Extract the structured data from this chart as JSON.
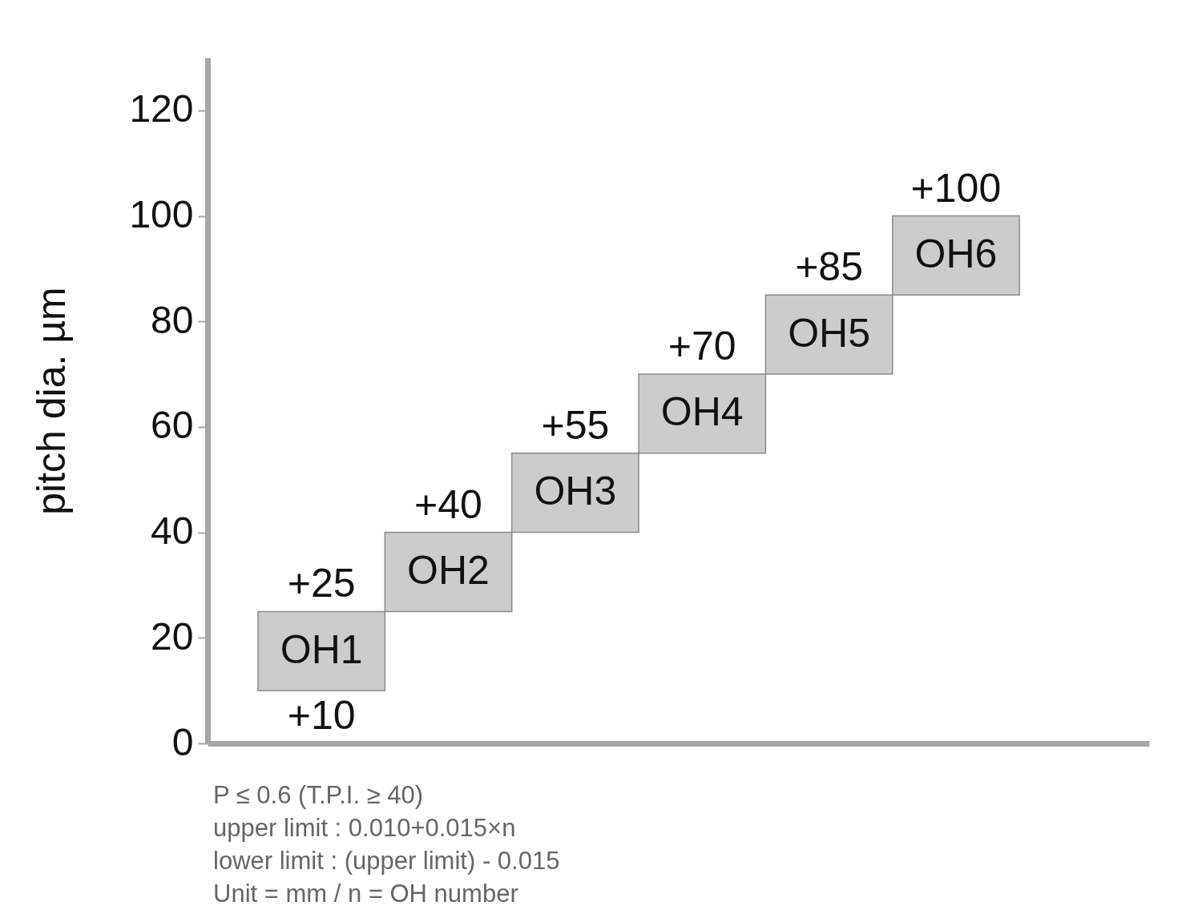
{
  "chart_data": {
    "type": "bar",
    "ylabel": "pitch dia. µm",
    "categories": [
      "OH1",
      "OH2",
      "OH3",
      "OH4",
      "OH5",
      "OH6"
    ],
    "values": [
      15,
      15,
      15,
      15,
      15,
      15
    ],
    "base": [
      10,
      25,
      40,
      55,
      70,
      85
    ],
    "color": "#cccccc",
    "ylim": [
      0,
      130
    ],
    "yticks": [
      0,
      20,
      40,
      60,
      80,
      100,
      120
    ],
    "grid": false,
    "tick_labels": "y",
    "annotations": [
      {
        "text": "+10",
        "x": "OH1",
        "y": 10
      },
      {
        "text": "+25",
        "x": "OH1",
        "y": 25
      },
      {
        "text": "+40",
        "x": "OH2",
        "y": 40
      },
      {
        "text": "+55",
        "x": "OH3",
        "y": 55
      },
      {
        "text": "+70",
        "x": "OH4",
        "y": 70
      },
      {
        "text": "+85",
        "x": "OH5",
        "y": 85
      },
      {
        "text": "+100",
        "x": "OH6",
        "y": 100
      },
      "P ≤ 0.6 (T.P.I. ≥ 40)",
      "upper limit : 0.010+0.015×n",
      "lower limit : (upper limit) - 0.015",
      "Unit = mm / n = OH number"
    ]
  }
}
